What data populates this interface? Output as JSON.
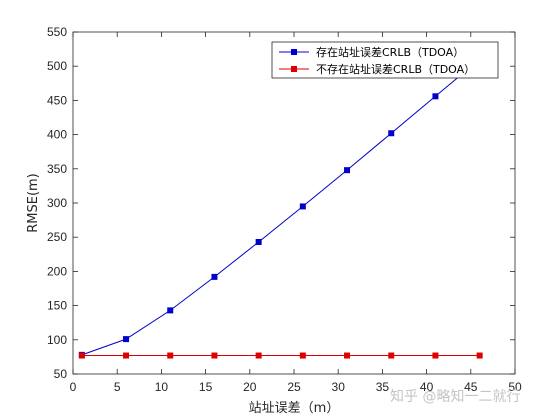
{
  "chart_data": {
    "type": "line",
    "xlabel": "站址误差（m）",
    "ylabel": "RMSE(m)",
    "xlim": [
      0,
      50
    ],
    "ylim": [
      50,
      550
    ],
    "xticks": [
      0,
      5,
      10,
      15,
      20,
      25,
      30,
      35,
      40,
      45,
      50
    ],
    "yticks": [
      50,
      100,
      150,
      200,
      250,
      300,
      350,
      400,
      450,
      500,
      550
    ],
    "grid": false,
    "legend_position": "top-right",
    "x": [
      1,
      6,
      11,
      16,
      21,
      26,
      31,
      36,
      41,
      46
    ],
    "series": [
      {
        "name": "存在站址误差CRLB（TDOA）",
        "color": "#0000cc",
        "values": [
          78,
          101,
          143,
          192,
          243,
          295,
          348,
          402,
          456,
          510
        ]
      },
      {
        "name": "不存在站址误差CRLB（TDOA）",
        "color": "#dd0000",
        "values": [
          77,
          77,
          77,
          77,
          77,
          77,
          77,
          77,
          77,
          77
        ]
      }
    ]
  },
  "watermark": "知乎 @略知一二就行"
}
